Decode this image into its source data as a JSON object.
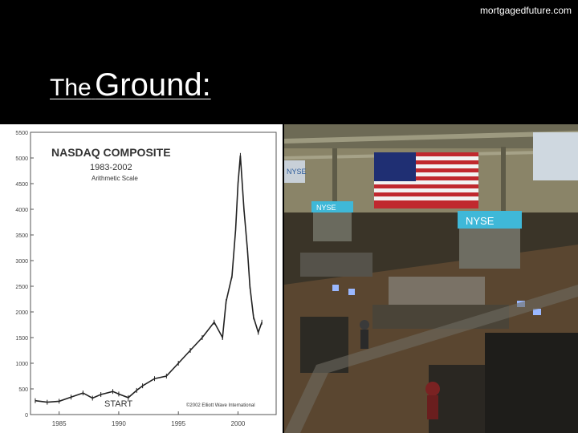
{
  "site": "mortgagedfuture.com",
  "slide": {
    "title_small": "The",
    "title_large": "Ground:"
  },
  "chart_data": {
    "type": "line",
    "title": "NASDAQ COMPOSITE",
    "subtitle": "1983-2002",
    "scale_note": "Arithmetic Scale",
    "annotation": "START",
    "credit": "©2002 Elliott Wave International",
    "ylim": [
      0,
      5500
    ],
    "yticks": [
      "0",
      "500",
      "1000",
      "1500",
      "2000",
      "2500",
      "3000",
      "3500",
      "4000",
      "4500",
      "5000",
      "5500"
    ],
    "xticks": [
      "1985",
      "1990",
      "1995",
      "2000"
    ],
    "x": [
      1983.0,
      1984.0,
      1985.0,
      1986.0,
      1987.0,
      1987.8,
      1988.5,
      1989.5,
      1990.0,
      1990.8,
      1991.5,
      1992.0,
      1993.0,
      1994.0,
      1995.0,
      1996.0,
      1997.0,
      1998.0,
      1998.7,
      1999.0,
      1999.5,
      1999.8,
      2000.0,
      2000.2,
      2000.5,
      2000.8,
      2001.0,
      2001.3,
      2001.7,
      2002.0
    ],
    "y": [
      270,
      240,
      260,
      340,
      420,
      320,
      390,
      450,
      400,
      330,
      470,
      560,
      700,
      750,
      1000,
      1250,
      1500,
      1800,
      1500,
      2200,
      2700,
      3600,
      4500,
      5050,
      4000,
      3200,
      2500,
      1900,
      1600,
      1800
    ]
  },
  "photo": {
    "description_labels": [
      "NYSE",
      "NYSE",
      "NYSE"
    ],
    "colors": {
      "floor": "#5a4630",
      "booth_sign": "#3fb8d8",
      "flag_red": "#c0282e",
      "flag_blue": "#1f2f73"
    }
  }
}
